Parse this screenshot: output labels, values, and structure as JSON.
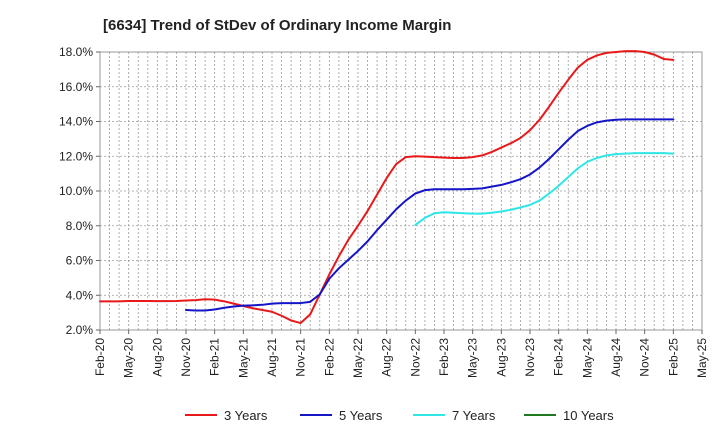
{
  "chart_data": {
    "type": "line",
    "title": "[6634]  Trend of StDev of Ordinary Income Margin",
    "xlabel": "",
    "ylabel": "",
    "ylim": [
      2.0,
      18.0
    ],
    "yticks": [
      "2.0%",
      "4.0%",
      "6.0%",
      "8.0%",
      "10.0%",
      "12.0%",
      "14.0%",
      "16.0%",
      "18.0%"
    ],
    "ytick_values": [
      2,
      4,
      6,
      8,
      10,
      12,
      14,
      16,
      18
    ],
    "xticks": [
      "Feb-20",
      "May-20",
      "Aug-20",
      "Nov-20",
      "Feb-21",
      "May-21",
      "Aug-21",
      "Nov-21",
      "Feb-22",
      "May-22",
      "Aug-22",
      "Nov-22",
      "Feb-23",
      "May-23",
      "Aug-23",
      "Nov-23",
      "Feb-24",
      "May-24",
      "Aug-24",
      "Nov-24",
      "Feb-25",
      "May-25"
    ],
    "grid": true,
    "legend_position": "bottom",
    "series": [
      {
        "name": "3 Years",
        "color": "#e8191a",
        "x": [
          "Feb-20",
          "Mar-20",
          "Apr-20",
          "May-20",
          "Jun-20",
          "Jul-20",
          "Aug-20",
          "Sep-20",
          "Oct-20",
          "Nov-20",
          "Dec-20",
          "Jan-21",
          "Feb-21",
          "Mar-21",
          "Apr-21",
          "May-21",
          "Jun-21",
          "Jul-21",
          "Aug-21",
          "Sep-21",
          "Oct-21",
          "Nov-21",
          "Dec-21",
          "Jan-22",
          "Feb-22",
          "Mar-22",
          "Apr-22",
          "May-22",
          "Jun-22",
          "Jul-22",
          "Aug-22",
          "Sep-22",
          "Oct-22",
          "Nov-22",
          "Dec-22",
          "Jan-23",
          "Feb-23",
          "Mar-23",
          "Apr-23",
          "May-23",
          "Jun-23",
          "Jul-23",
          "Aug-23",
          "Sep-23",
          "Oct-23",
          "Nov-23",
          "Dec-23",
          "Jan-24",
          "Feb-24",
          "Mar-24",
          "Apr-24",
          "May-24",
          "Jun-24",
          "Jul-24",
          "Aug-24",
          "Sep-24",
          "Oct-24",
          "Nov-24",
          "Dec-24",
          "Jan-25",
          "Feb-25"
        ],
        "values": [
          3.65,
          3.65,
          3.65,
          3.67,
          3.67,
          3.67,
          3.66,
          3.66,
          3.67,
          3.7,
          3.72,
          3.77,
          3.75,
          3.65,
          3.52,
          3.38,
          3.25,
          3.15,
          3.05,
          2.82,
          2.55,
          2.4,
          2.9,
          4.05,
          5.2,
          6.25,
          7.2,
          8.0,
          8.85,
          9.8,
          10.75,
          11.55,
          11.95,
          12.0,
          11.98,
          11.95,
          11.92,
          11.9,
          11.9,
          11.95,
          12.05,
          12.25,
          12.5,
          12.75,
          13.05,
          13.5,
          14.1,
          14.85,
          15.65,
          16.4,
          17.1,
          17.55,
          17.8,
          17.95,
          18.0,
          18.05,
          18.05,
          18.0,
          17.85,
          17.6,
          17.55
        ]
      },
      {
        "name": "5 Years",
        "color": "#1515c8",
        "x": [
          "Nov-20",
          "Dec-20",
          "Jan-21",
          "Feb-21",
          "Mar-21",
          "Apr-21",
          "May-21",
          "Jun-21",
          "Jul-21",
          "Aug-21",
          "Sep-21",
          "Oct-21",
          "Nov-21",
          "Dec-21",
          "Jan-22",
          "Feb-22",
          "Mar-22",
          "Apr-22",
          "May-22",
          "Jun-22",
          "Jul-22",
          "Aug-22",
          "Sep-22",
          "Oct-22",
          "Nov-22",
          "Dec-22",
          "Jan-23",
          "Feb-23",
          "Mar-23",
          "Apr-23",
          "May-23",
          "Jun-23",
          "Jul-23",
          "Aug-23",
          "Sep-23",
          "Oct-23",
          "Nov-23",
          "Dec-23",
          "Jan-24",
          "Feb-24",
          "Mar-24",
          "Apr-24",
          "May-24",
          "Jun-24",
          "Jul-24",
          "Aug-24",
          "Sep-24",
          "Oct-24",
          "Nov-24",
          "Dec-24",
          "Jan-25",
          "Feb-25"
        ],
        "values": [
          3.15,
          3.12,
          3.12,
          3.18,
          3.28,
          3.35,
          3.4,
          3.42,
          3.45,
          3.52,
          3.55,
          3.55,
          3.55,
          3.62,
          4.05,
          4.95,
          5.55,
          6.05,
          6.55,
          7.1,
          7.75,
          8.35,
          8.95,
          9.45,
          9.85,
          10.05,
          10.1,
          10.1,
          10.1,
          10.1,
          10.12,
          10.15,
          10.25,
          10.35,
          10.5,
          10.68,
          10.95,
          11.35,
          11.85,
          12.4,
          12.95,
          13.45,
          13.75,
          13.95,
          14.05,
          14.1,
          14.12,
          14.12,
          14.12,
          14.12,
          14.12,
          14.12
        ]
      },
      {
        "name": "7 Years",
        "color": "#2ee6e6",
        "x": [
          "Nov-22",
          "Dec-22",
          "Jan-23",
          "Feb-23",
          "Mar-23",
          "Apr-23",
          "May-23",
          "Jun-23",
          "Jul-23",
          "Aug-23",
          "Sep-23",
          "Oct-23",
          "Nov-23",
          "Dec-23",
          "Jan-24",
          "Feb-24",
          "Mar-24",
          "Apr-24",
          "May-24",
          "Jun-24",
          "Jul-24",
          "Aug-24",
          "Sep-24",
          "Oct-24",
          "Nov-24",
          "Dec-24",
          "Jan-25",
          "Feb-25"
        ],
        "values": [
          8.05,
          8.45,
          8.72,
          8.78,
          8.75,
          8.72,
          8.7,
          8.7,
          8.75,
          8.82,
          8.92,
          9.05,
          9.2,
          9.45,
          9.85,
          10.3,
          10.8,
          11.3,
          11.68,
          11.9,
          12.05,
          12.12,
          12.15,
          12.18,
          12.18,
          12.18,
          12.18,
          12.15
        ]
      },
      {
        "name": "10 Years",
        "color": "#1f7a1f",
        "x": [],
        "values": []
      }
    ]
  }
}
